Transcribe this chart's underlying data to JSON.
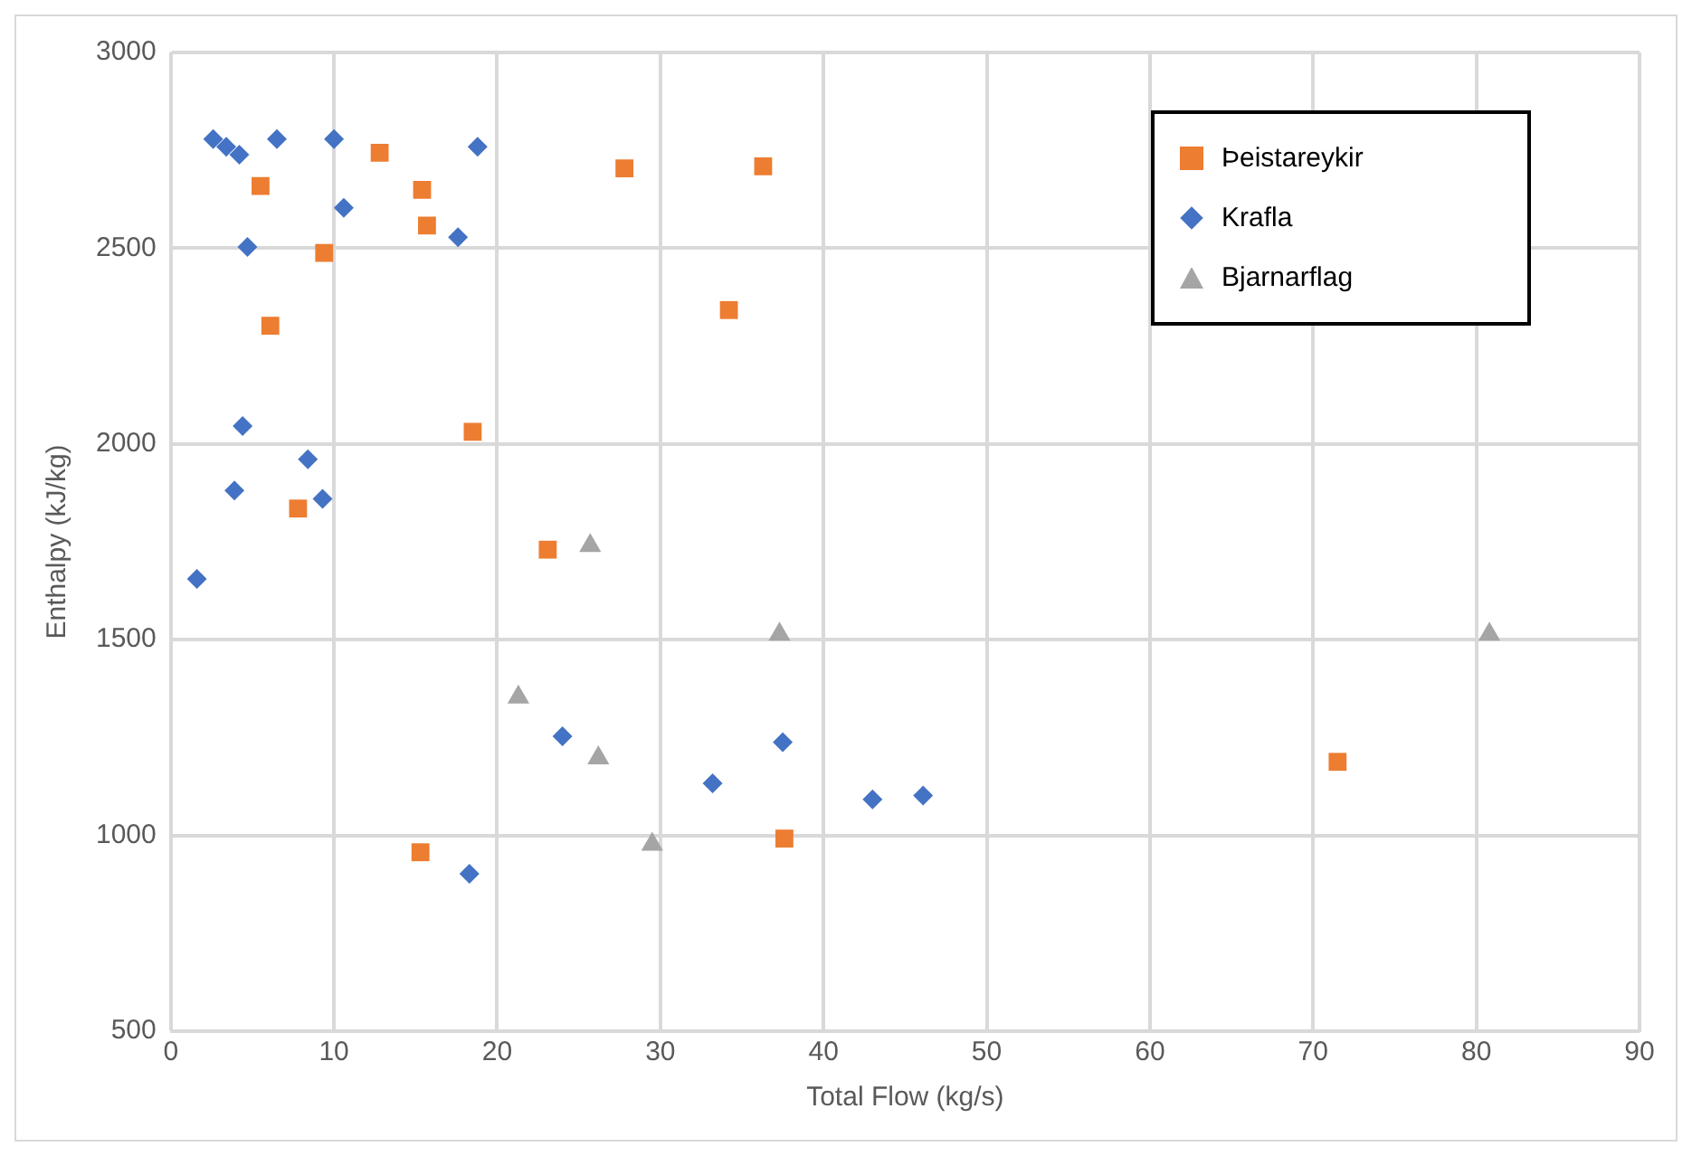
{
  "chart_data": {
    "type": "scatter",
    "xlabel": "Total Flow (kg/s)",
    "ylabel": "Enthalpy (kJ/kg)",
    "xlim": [
      0,
      90
    ],
    "xticks": [
      0,
      10,
      20,
      30,
      40,
      50,
      60,
      70,
      80,
      90
    ],
    "ylim": [
      500,
      3000
    ],
    "yticks": [
      500,
      1000,
      1500,
      2000,
      2500,
      3000
    ],
    "grid": true,
    "legend": "top right",
    "series": [
      {
        "name": "Þeistareykir",
        "color": "#ed7d31",
        "marker": "square",
        "x": [
          5.5,
          6.1,
          7.8,
          9.4,
          12.8,
          15.4,
          15.7,
          15.3,
          18.5,
          23.1,
          27.8,
          36.3,
          34.2,
          37.6,
          71.5
        ],
        "values": [
          2659,
          2302,
          1835,
          2488,
          2744,
          2649,
          2558,
          957,
          2031,
          1730,
          2704,
          2709,
          2342,
          992,
          1188
        ]
      },
      {
        "name": "Krafla",
        "color": "#4472c4",
        "marker": "diamond",
        "x": [
          2.6,
          3.4,
          4.2,
          4.7,
          4.4,
          3.9,
          1.6,
          6.5,
          10.0,
          10.6,
          18.8,
          17.6,
          8.4,
          9.3,
          24.0,
          18.3,
          33.2,
          37.5,
          43.0,
          46.1
        ],
        "values": [
          2779,
          2759,
          2739,
          2503,
          2046,
          1881,
          1655,
          2779,
          2779,
          2603,
          2759,
          2528,
          1961,
          1860,
          1253,
          902,
          1133,
          1238,
          1092,
          1102
        ]
      },
      {
        "name": "Bjarnarflag",
        "color": "#a5a5a5",
        "marker": "triangle",
        "x": [
          25.7,
          37.3,
          21.3,
          26.2,
          29.5,
          80.8
        ],
        "values": [
          1740,
          1514,
          1353,
          1198,
          977,
          1514
        ]
      }
    ]
  }
}
